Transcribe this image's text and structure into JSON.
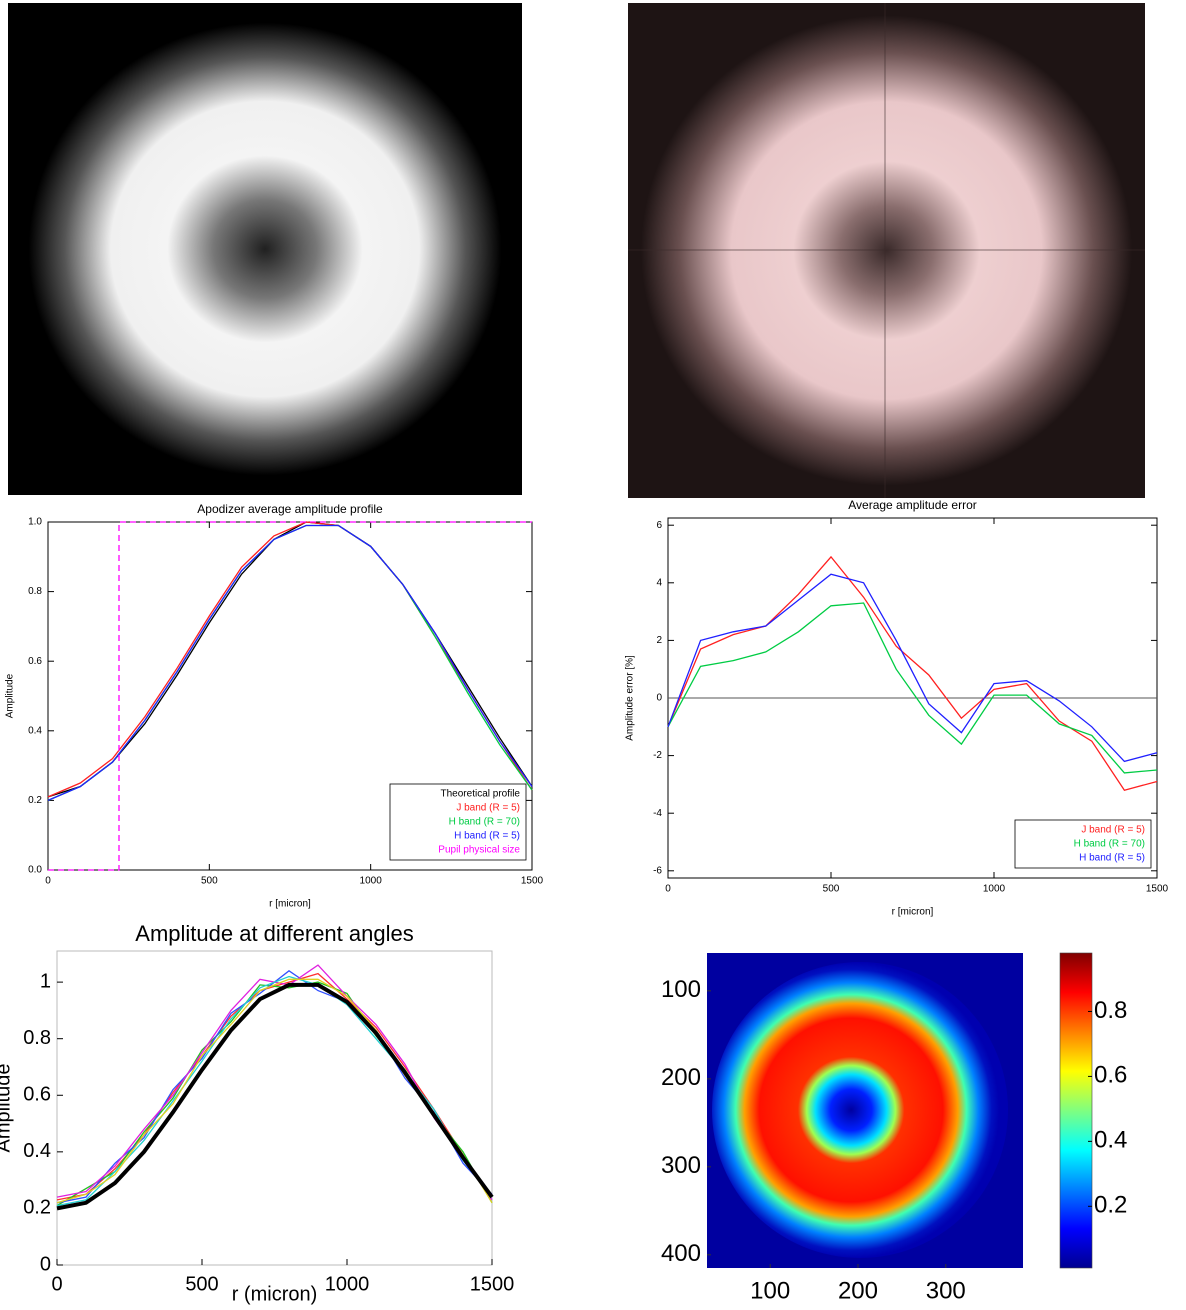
{
  "chart_data": [
    {
      "type": "line",
      "title": "Apodizer average amplitude profile",
      "x_label": "r [micron]",
      "y_label": "Amplitude",
      "x": [
        0,
        100,
        200,
        300,
        400,
        500,
        600,
        700,
        800,
        900,
        1000,
        1100,
        1200,
        1300,
        1400,
        1500
      ],
      "xlim": [
        0,
        1500
      ],
      "ylim": [
        0,
        1.0
      ],
      "xticks": [
        0,
        500,
        1000,
        1500
      ],
      "yticks": [
        {
          "value": 0,
          "label": "0.0"
        },
        0.2,
        0.4,
        0.6,
        0.8,
        {
          "value": 1,
          "label": "1.0"
        }
      ],
      "legend": "lower right",
      "series": [
        {
          "name": "Theoretical profile",
          "color": "#000000",
          "values": [
            0.21,
            0.24,
            0.31,
            0.42,
            0.56,
            0.71,
            0.85,
            0.95,
            1.0,
            0.99,
            0.93,
            0.82,
            0.68,
            0.53,
            0.38,
            0.24
          ]
        },
        {
          "name": "J band (R = 5)",
          "color": "#ff2020",
          "values": [
            0.21,
            0.25,
            0.32,
            0.44,
            0.58,
            0.73,
            0.87,
            0.96,
            1.0,
            0.99,
            0.93,
            0.82,
            0.67,
            0.52,
            0.37,
            0.23
          ]
        },
        {
          "name": "H band (R = 70)",
          "color": "#00cc44",
          "values": [
            0.2,
            0.24,
            0.31,
            0.43,
            0.57,
            0.72,
            0.86,
            0.95,
            0.99,
            0.99,
            0.93,
            0.82,
            0.67,
            0.51,
            0.36,
            0.23
          ]
        },
        {
          "name": "H band (R = 5)",
          "color": "#2020ff",
          "values": [
            0.2,
            0.24,
            0.31,
            0.43,
            0.57,
            0.72,
            0.86,
            0.95,
            0.99,
            0.99,
            0.93,
            0.82,
            0.68,
            0.52,
            0.37,
            0.24
          ]
        },
        {
          "name": "Pupil physical size",
          "color": "#ff00ff",
          "dashed": true,
          "x": [
            0,
            220,
            220,
            1500
          ],
          "values": [
            0,
            0,
            1,
            1
          ]
        }
      ]
    },
    {
      "type": "line",
      "title": "Average amplitude error",
      "x_label": "r [micron]",
      "y_label": "Amplitude error [%]",
      "x": [
        0,
        100,
        200,
        300,
        400,
        500,
        600,
        700,
        800,
        900,
        1000,
        1100,
        1200,
        1300,
        1400,
        1500
      ],
      "xlim": [
        0,
        1500
      ],
      "ylim": [
        -6.25,
        6.25
      ],
      "xticks": [
        0,
        500,
        1000,
        1500
      ],
      "yticks": [
        -6,
        -4,
        -2,
        0,
        2,
        4,
        6
      ],
      "reference_line": 0,
      "legend": "lower right",
      "series": [
        {
          "name": "J band (R = 5)",
          "color": "#ff2020",
          "values": [
            -1,
            1.7,
            2.2,
            2.5,
            3.6,
            4.9,
            3.5,
            1.8,
            0.8,
            -0.7,
            0.3,
            0.5,
            -0.8,
            -1.5,
            -3.2,
            -2.9
          ]
        },
        {
          "name": "H band (R = 70)",
          "color": "#00cc44",
          "values": [
            -1,
            1.1,
            1.3,
            1.6,
            2.3,
            3.2,
            3.3,
            1.0,
            -0.6,
            -1.6,
            0.1,
            0.1,
            -0.9,
            -1.3,
            -2.6,
            -2.5
          ]
        },
        {
          "name": "H band (R = 5)",
          "color": "#2020ff",
          "values": [
            -1,
            2.0,
            2.3,
            2.5,
            3.4,
            4.3,
            4.0,
            2.0,
            -0.2,
            -1.2,
            0.5,
            0.6,
            -0.1,
            -1.0,
            -2.2,
            -1.9
          ]
        }
      ]
    },
    {
      "type": "line",
      "title": "Amplitude at different angles",
      "x_label": "r (micron)",
      "y_label": "Amplitude",
      "x": [
        0,
        100,
        200,
        300,
        400,
        500,
        600,
        700,
        800,
        900,
        1000,
        1100,
        1200,
        1300,
        1400,
        1500
      ],
      "xlim": [
        0,
        1500
      ],
      "ylim": [
        0,
        1.11
      ],
      "xticks": [
        0,
        500,
        1000,
        1500
      ],
      "yticks": [
        0,
        0.2,
        0.4,
        0.6,
        0.8,
        1
      ],
      "series": [
        {
          "color": "#ff3030",
          "values": [
            0.23,
            0.25,
            0.34,
            0.46,
            0.61,
            0.74,
            0.88,
            0.97,
            1.0,
            1.03,
            0.94,
            0.84,
            0.7,
            0.55,
            0.39,
            0.24
          ]
        },
        {
          "color": "#20c020",
          "values": [
            0.21,
            0.27,
            0.33,
            0.47,
            0.59,
            0.76,
            0.86,
            0.99,
            0.98,
            1.0,
            0.96,
            0.81,
            0.69,
            0.53,
            0.4,
            0.22
          ]
        },
        {
          "color": "#3050ff",
          "values": [
            0.22,
            0.24,
            0.36,
            0.45,
            0.62,
            0.73,
            0.89,
            0.96,
            1.04,
            0.97,
            0.93,
            0.83,
            0.66,
            0.54,
            0.36,
            0.25
          ]
        },
        {
          "color": "#e020e0",
          "values": [
            0.24,
            0.26,
            0.35,
            0.48,
            0.6,
            0.75,
            0.9,
            1.01,
            0.99,
            1.06,
            0.95,
            0.85,
            0.71,
            0.52,
            0.38,
            0.23
          ]
        },
        {
          "color": "#20d0d0",
          "values": [
            0.21,
            0.23,
            0.33,
            0.44,
            0.58,
            0.72,
            0.87,
            0.98,
            1.02,
            0.99,
            0.92,
            0.8,
            0.68,
            0.55,
            0.37,
            0.24
          ]
        },
        {
          "color": "#e0d020",
          "values": [
            0.22,
            0.25,
            0.32,
            0.46,
            0.57,
            0.74,
            0.85,
            0.97,
            1.01,
            1.01,
            0.95,
            0.83,
            0.67,
            0.53,
            0.39,
            0.22
          ]
        },
        {
          "color": "#000000",
          "thick": true,
          "values": [
            0.2,
            0.22,
            0.29,
            0.4,
            0.54,
            0.69,
            0.83,
            0.94,
            0.99,
            0.99,
            0.93,
            0.82,
            0.68,
            0.53,
            0.38,
            0.24
          ]
        }
      ]
    },
    {
      "type": "heatmap",
      "colormap": "jet",
      "xlim": [
        28,
        388
      ],
      "ylim": [
        415,
        57
      ],
      "xticks": [
        100,
        200,
        300
      ],
      "yticks": [
        100,
        200,
        300,
        400
      ],
      "clim": [
        0.01,
        0.98
      ],
      "cticks": [
        0.2,
        0.4,
        0.6,
        0.8
      ]
    }
  ]
}
